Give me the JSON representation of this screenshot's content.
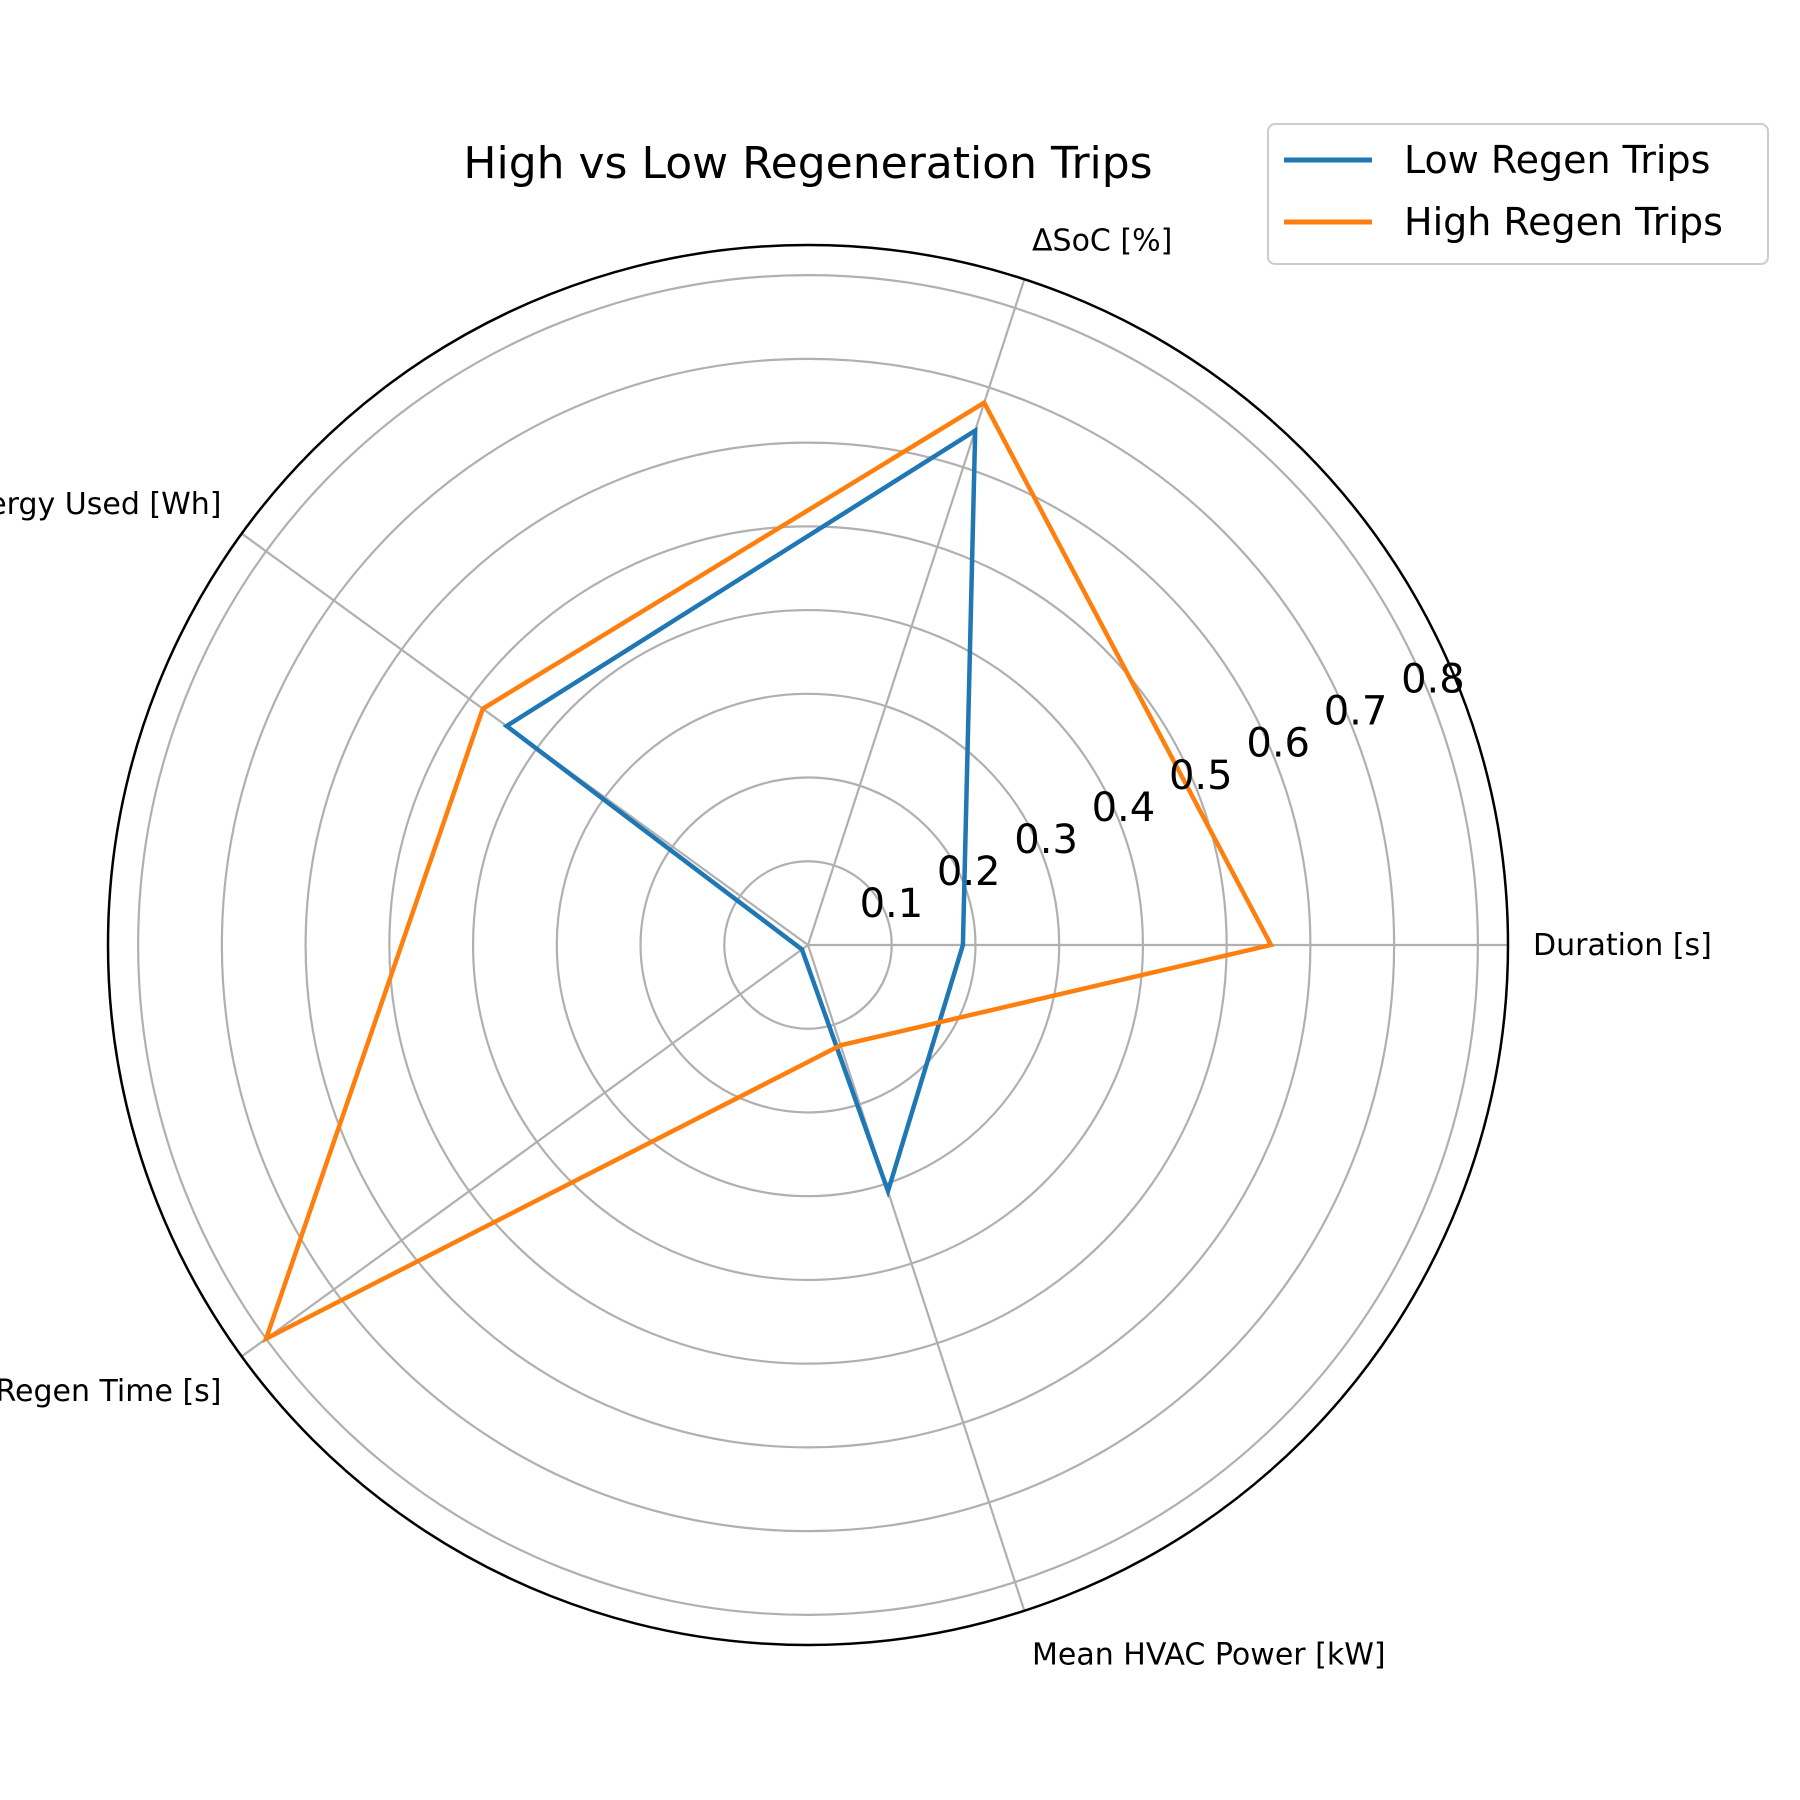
{
  "chart_data": {
    "type": "radar",
    "title": "High vs Low Regeneration Trips",
    "axes": [
      "Duration [s]",
      "ΔSoC [%]",
      "Energy Used [Wh]",
      "Regen Time [s]",
      "Mean HVAC Power [kW]"
    ],
    "rticks": [
      0.1,
      0.2,
      0.3,
      0.4,
      0.5,
      0.6,
      0.7,
      0.8
    ],
    "rtick_labels": [
      "0.1",
      "0.2",
      "0.3",
      "0.4",
      "0.5",
      "0.6",
      "0.7",
      "0.8"
    ],
    "rlim": [
      0,
      0.836
    ],
    "grid": true,
    "legend_position": "top-right",
    "series": [
      {
        "name": "Low Regen Trips",
        "color": "#1f77b4",
        "values": [
          0.185,
          0.646,
          0.445,
          0.009,
          0.309
        ]
      },
      {
        "name": "High Regen Trips",
        "color": "#ff7f0e",
        "values": [
          0.553,
          0.681,
          0.48,
          0.8,
          0.126
        ]
      }
    ]
  }
}
